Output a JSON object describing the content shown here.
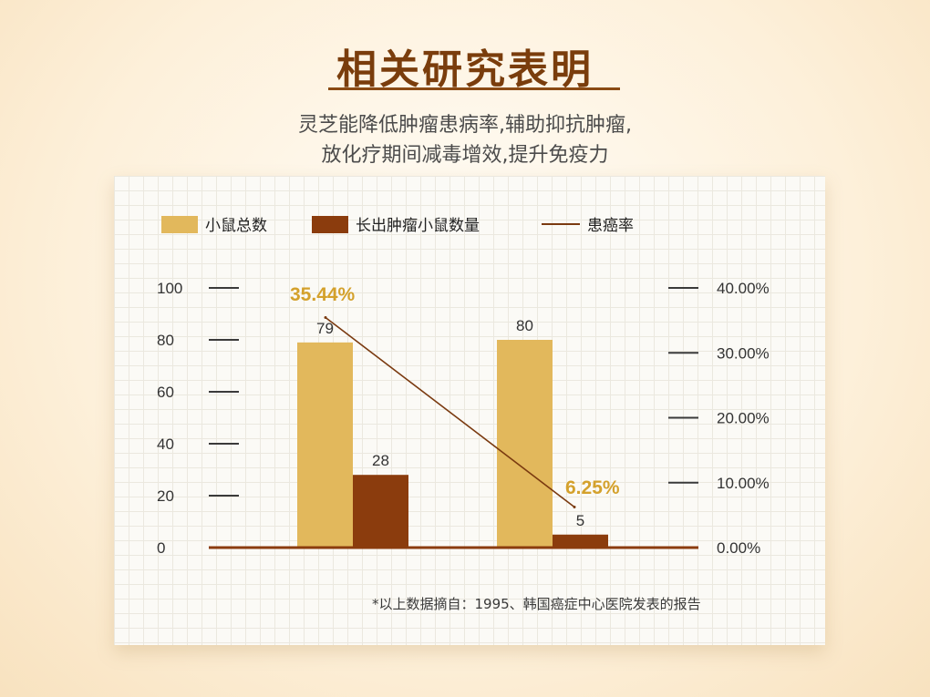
{
  "header": {
    "title": "相关研究表明",
    "subtitle_line1": "灵芝能降低肿瘤患病率,辅助抑抗肿瘤,",
    "subtitle_line2": "放化疗期间减毒增效,提升免疫力"
  },
  "footnote": "*以上数据摘自：1995、韩国癌症中心医院发表的报告",
  "colors": {
    "total_bar": "#e2b85c",
    "tumor_bar": "#8b3c0d",
    "rate_line": "#7a3a10",
    "rate_label": "#d4a12c",
    "title": "#7a3d0c"
  },
  "chart_data": {
    "type": "bar",
    "categories": [
      "",
      ""
    ],
    "series": [
      {
        "name": "小鼠总数",
        "values": [
          79,
          80
        ],
        "axis": "left",
        "color": "#e2b85c"
      },
      {
        "name": "长出肿瘤小鼠数量",
        "values": [
          28,
          5
        ],
        "axis": "left",
        "color": "#8b3c0d"
      },
      {
        "name": "患癌率",
        "type": "line",
        "values": [
          35.44,
          6.25
        ],
        "labels": [
          "35.44%",
          "6.25%"
        ],
        "axis": "right",
        "color": "#7a3a10"
      }
    ],
    "ylim": [
      0,
      100
    ],
    "y_ticks": [
      "0",
      "20",
      "40",
      "60",
      "80",
      "100"
    ],
    "y2lim": [
      0,
      40
    ],
    "y2_ticks": [
      "0.00%",
      "10.00%",
      "20.00%",
      "30.00%",
      "40.00%"
    ],
    "legend_position": "top-left",
    "grid": true
  }
}
